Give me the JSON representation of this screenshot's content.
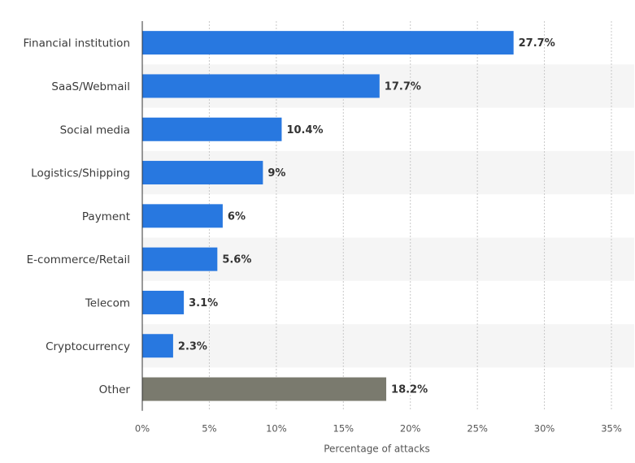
{
  "chart_data": {
    "type": "bar",
    "orientation": "horizontal",
    "categories": [
      "Financial institution",
      "SaaS/Webmail",
      "Social media",
      "Logistics/Shipping",
      "Payment",
      "E-commerce/Retail",
      "Telecom",
      "Cryptocurrency",
      "Other"
    ],
    "values": [
      27.7,
      17.7,
      10.4,
      9,
      6,
      5.6,
      3.1,
      2.3,
      18.2
    ],
    "value_labels": [
      "27.7%",
      "17.7%",
      "10.4%",
      "9%",
      "6%",
      "5.6%",
      "3.1%",
      "2.3%",
      "18.2%"
    ],
    "xlabel": "Percentage of attacks",
    "ylabel": "",
    "title": "",
    "xlim": [
      0,
      35
    ],
    "xticks": [
      0,
      5,
      10,
      15,
      20,
      25,
      30,
      35
    ],
    "xtick_labels": [
      "0%",
      "5%",
      "10%",
      "15%",
      "20%",
      "25%",
      "30%",
      "35%"
    ],
    "grid": true,
    "legend": false
  },
  "colors": {
    "bar": "#2878e0",
    "other_bar": "#7a7a6e",
    "band": "#f5f5f5",
    "grid": "#c8c8c8",
    "axis": "#333333"
  }
}
